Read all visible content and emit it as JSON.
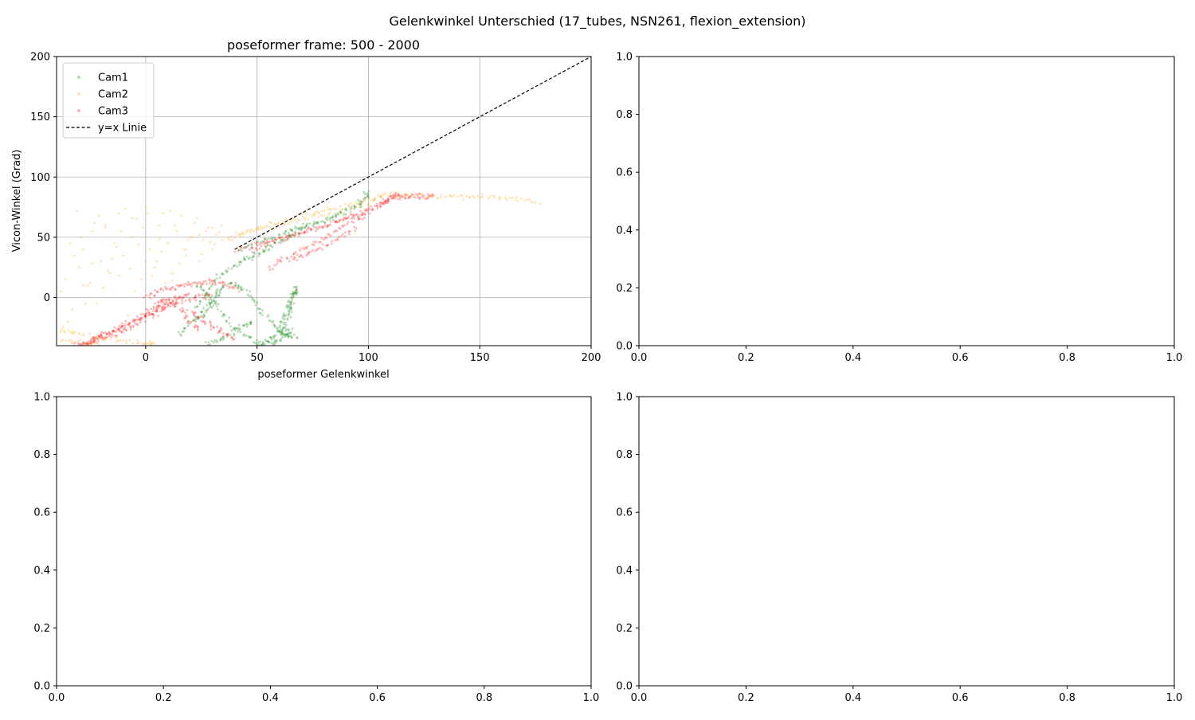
{
  "figure": {
    "suptitle": "Gelenkwinkel Unterschied (17_tubes, NSN261, flexion_extension)"
  },
  "chart_data": [
    {
      "type": "scatter",
      "title": "poseformer frame: 500 - 2000",
      "xlabel": "poseformer Gelenkwinkel",
      "ylabel": "Vicon-Winkel (Grad)",
      "xlim": [
        -40,
        200
      ],
      "ylim": [
        -40,
        200
      ],
      "xticks": [
        0,
        50,
        100,
        150,
        200
      ],
      "yticks": [
        0,
        50,
        100,
        150,
        200
      ],
      "grid": true,
      "legend": "upper-left",
      "series": [
        {
          "name": "Cam1",
          "color": "#008000",
          "segments": [
            [
              [
                22,
                -10
              ],
              [
                28,
                5
              ],
              [
                33,
                18
              ],
              [
                40,
                26
              ],
              [
                45,
                32
              ],
              [
                50,
                36
              ],
              [
                55,
                42
              ],
              [
                60,
                46
              ],
              [
                65,
                52
              ],
              [
                70,
                56
              ],
              [
                75,
                60
              ],
              [
                80,
                64
              ],
              [
                85,
                68
              ],
              [
                90,
                72
              ],
              [
                95,
                77
              ],
              [
                98,
                82
              ],
              [
                100,
                88
              ]
            ],
            [
              [
                22,
                12
              ],
              [
                28,
                2
              ],
              [
                32,
                -8
              ],
              [
                38,
                -22
              ],
              [
                45,
                -32
              ],
              [
                52,
                -38
              ],
              [
                58,
                -38
              ],
              [
                62,
                -32
              ],
              [
                66,
                -26
              ]
            ],
            [
              [
                24,
                -18
              ],
              [
                30,
                -5
              ],
              [
                35,
                8
              ],
              [
                40,
                12
              ],
              [
                45,
                5
              ],
              [
                50,
                -6
              ],
              [
                55,
                -18
              ],
              [
                60,
                -28
              ],
              [
                64,
                -32
              ],
              [
                68,
                -34
              ]
            ],
            [
              [
                50,
                -40
              ],
              [
                55,
                -36
              ],
              [
                60,
                -30
              ],
              [
                63,
                -22
              ],
              [
                65,
                -10
              ],
              [
                66,
                0
              ],
              [
                68,
                8
              ]
            ],
            [
              [
                60,
                -28
              ],
              [
                62,
                -18
              ],
              [
                64,
                -8
              ],
              [
                66,
                3
              ],
              [
                68,
                7
              ]
            ],
            [
              [
                26,
                -40
              ],
              [
                32,
                -36
              ],
              [
                38,
                -30
              ],
              [
                44,
                -24
              ],
              [
                48,
                -20
              ]
            ],
            [
              [
                15,
                -30
              ],
              [
                20,
                -22
              ],
              [
                25,
                -14
              ],
              [
                30,
                -2
              ],
              [
                34,
                8
              ]
            ],
            [
              [
                42,
                40
              ],
              [
                50,
                45
              ],
              [
                58,
                50
              ],
              [
                65,
                55
              ],
              [
                72,
                60
              ]
            ]
          ]
        },
        {
          "name": "Cam2",
          "color": "#ffa500",
          "segments": [
            [
              [
                -38,
                -28
              ],
              [
                -30,
                -30
              ],
              [
                -20,
                -34
              ],
              [
                -10,
                -36
              ],
              [
                0,
                -38
              ],
              [
                5,
                -39
              ]
            ],
            [
              [
                -38,
                -36
              ],
              [
                -28,
                -38
              ],
              [
                -20,
                -39
              ]
            ],
            [
              [
                35,
                48
              ],
              [
                45,
                54
              ],
              [
                55,
                60
              ],
              [
                65,
                65
              ],
              [
                75,
                70
              ],
              [
                85,
                74
              ],
              [
                95,
                79
              ],
              [
                105,
                84
              ],
              [
                115,
                85
              ],
              [
                125,
                85
              ],
              [
                135,
                84
              ],
              [
                145,
                84
              ],
              [
                155,
                84
              ],
              [
                165,
                82
              ],
              [
                178,
                78
              ]
            ],
            [
              [
                40,
                52
              ],
              [
                55,
                58
              ],
              [
                70,
                64
              ],
              [
                85,
                70
              ],
              [
                100,
                78
              ],
              [
                110,
                88
              ]
            ]
          ],
          "scatter_x": [
            -38,
            -36,
            -33,
            -30,
            -28,
            -26,
            -24,
            -22,
            -20,
            -18,
            -16,
            -14,
            -12,
            -10,
            -8,
            -6,
            -4,
            -2,
            0,
            2,
            4,
            6,
            8,
            10,
            12,
            14,
            16,
            18,
            20,
            22,
            24,
            26,
            28,
            30,
            32,
            34,
            -35,
            -32,
            -29,
            -25,
            -21,
            -17,
            -13,
            -9,
            -5,
            -1,
            3,
            7,
            11,
            15,
            19,
            23,
            27,
            31,
            -37,
            -31,
            -27,
            -23,
            -19,
            -15,
            -11,
            -7,
            -3,
            1,
            5,
            9,
            13,
            17,
            21,
            25,
            29,
            33,
            -34,
            -28,
            -24,
            -18,
            -12,
            -6,
            0,
            6,
            12,
            18,
            24,
            30
          ],
          "scatter_y": [
            5,
            15,
            -10,
            25,
            40,
            10,
            55,
            -5,
            30,
            60,
            20,
            45,
            70,
            35,
            -15,
            50,
            65,
            15,
            75,
            40,
            25,
            60,
            70,
            45,
            20,
            55,
            68,
            35,
            50,
            62,
            30,
            48,
            58,
            40,
            52,
            60,
            -20,
            35,
            50,
            12,
            68,
            22,
            42,
            74,
            5,
            58,
            18,
            38,
            72,
            28,
            48,
            66,
            55,
            44,
            -25,
            72,
            -5,
            62,
            8,
            32,
            55,
            24,
            44,
            70,
            30,
            12,
            60,
            40,
            50,
            36,
            46,
            54,
            45,
            10,
            28,
            58,
            18,
            66,
            30,
            48,
            14,
            40,
            52,
            58
          ]
        },
        {
          "name": "Cam3",
          "color": "#ff0000",
          "segments": [
            [
              [
                -28,
                -40
              ],
              [
                -22,
                -34
              ],
              [
                -15,
                -28
              ],
              [
                -8,
                -22
              ],
              [
                0,
                -14
              ],
              [
                5,
                -8
              ],
              [
                10,
                -4
              ],
              [
                15,
                0
              ],
              [
                20,
                3
              ]
            ],
            [
              [
                -25,
                -36
              ],
              [
                -18,
                -30
              ],
              [
                -10,
                -24
              ],
              [
                -2,
                -16
              ],
              [
                5,
                -10
              ],
              [
                12,
                -6
              ],
              [
                18,
                -2
              ],
              [
                24,
                0
              ],
              [
                30,
                2
              ]
            ],
            [
              [
                -32,
                -40
              ],
              [
                -26,
                -38
              ],
              [
                -20,
                -34
              ],
              [
                -14,
                -30
              ],
              [
                -8,
                -26
              ],
              [
                -2,
                -20
              ],
              [
                4,
                -14
              ],
              [
                10,
                -8
              ]
            ],
            [
              [
                0,
                0
              ],
              [
                6,
                6
              ],
              [
                12,
                8
              ],
              [
                18,
                10
              ],
              [
                24,
                12
              ],
              [
                30,
                14
              ],
              [
                36,
                12
              ],
              [
                42,
                6
              ]
            ],
            [
              [
                40,
                40
              ],
              [
                50,
                45
              ],
              [
                60,
                50
              ],
              [
                70,
                55
              ],
              [
                80,
                60
              ],
              [
                90,
                66
              ],
              [
                100,
                72
              ],
              [
                106,
                78
              ],
              [
                110,
                82
              ],
              [
                114,
                88
              ]
            ],
            [
              [
                45,
                38
              ],
              [
                55,
                44
              ],
              [
                65,
                50
              ],
              [
                75,
                56
              ],
              [
                85,
                62
              ],
              [
                95,
                68
              ],
              [
                105,
                76
              ],
              [
                110,
                80
              ]
            ],
            [
              [
                55,
                25
              ],
              [
                62,
                32
              ],
              [
                70,
                40
              ],
              [
                78,
                48
              ],
              [
                86,
                56
              ],
              [
                94,
                64
              ],
              [
                100,
                70
              ]
            ],
            [
              [
                65,
                30
              ],
              [
                72,
                36
              ],
              [
                80,
                42
              ],
              [
                88,
                50
              ],
              [
                96,
                58
              ]
            ],
            [
              [
                110,
                82
              ],
              [
                115,
                84
              ],
              [
                120,
                84
              ],
              [
                125,
                84
              ],
              [
                130,
                84
              ]
            ],
            [
              [
                20,
                -10
              ],
              [
                25,
                -18
              ],
              [
                30,
                -24
              ],
              [
                35,
                -30
              ],
              [
                40,
                -34
              ]
            ],
            [
              [
                5,
                -4
              ],
              [
                10,
                -2
              ],
              [
                16,
                -10
              ],
              [
                20,
                -20
              ],
              [
                24,
                -28
              ]
            ]
          ]
        },
        {
          "name": "y=x Linie",
          "style": "dashed",
          "color": "#000000",
          "x": [
            40,
            200
          ],
          "y": [
            40,
            200
          ]
        }
      ]
    },
    {
      "type": "scatter",
      "title": "",
      "xlim": [
        0,
        1
      ],
      "ylim": [
        0,
        1
      ],
      "xticks": [
        0.0,
        0.2,
        0.4,
        0.6,
        0.8,
        1.0
      ],
      "yticks": [
        0.0,
        0.2,
        0.4,
        0.6,
        0.8,
        1.0
      ],
      "series": []
    },
    {
      "type": "scatter",
      "title": "",
      "xlim": [
        0,
        1
      ],
      "ylim": [
        0,
        1
      ],
      "xticks": [
        0.0,
        0.2,
        0.4,
        0.6,
        0.8,
        1.0
      ],
      "yticks": [
        0.0,
        0.2,
        0.4,
        0.6,
        0.8,
        1.0
      ],
      "series": []
    },
    {
      "type": "scatter",
      "title": "",
      "xlim": [
        0,
        1
      ],
      "ylim": [
        0,
        1
      ],
      "xticks": [
        0.0,
        0.2,
        0.4,
        0.6,
        0.8,
        1.0
      ],
      "yticks": [
        0.0,
        0.2,
        0.4,
        0.6,
        0.8,
        1.0
      ],
      "series": []
    }
  ]
}
